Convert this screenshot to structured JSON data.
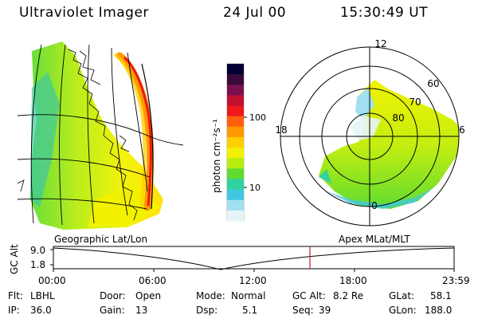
{
  "header": {
    "instrument": "Ultraviolet Imager",
    "date": "24 Jul 00",
    "time": "15:30:49 UT"
  },
  "colorbar": {
    "label": "photon cm⁻²s⁻¹",
    "ticks": [
      "100",
      "10"
    ],
    "colors": [
      "#000033",
      "#3a0a3a",
      "#7a1050",
      "#c01030",
      "#f01818",
      "#ff6010",
      "#ff9a00",
      "#ffd000",
      "#f2f200",
      "#b8ec10",
      "#60dc30",
      "#30d2a0",
      "#40c8e0",
      "#a0e0f0",
      "#e6f4f8"
    ]
  },
  "panels": {
    "geo_label": "Geographic Lat/Lon",
    "polar_label": "Apex MLat/MLT",
    "polar": {
      "mlt_labels": [
        "12",
        "18",
        "6",
        "0"
      ],
      "mlat_labels": [
        "60",
        "70",
        "80"
      ]
    }
  },
  "timeline": {
    "ylabel": "GC Alt",
    "ytick_top": "9.0",
    "ytick_bottom": "1.8",
    "xticks": [
      "00:00",
      "06:00",
      "12:00",
      "18:00",
      "23:59"
    ],
    "cursor_time": "15:30:49",
    "cursor_color": "#cc2020"
  },
  "info": {
    "filter_label": "Flt:",
    "filter_value": "LBHL",
    "ip_label": "IP:",
    "ip_value": "36.0",
    "door_label": "Door:",
    "door_value": "Open",
    "gain_label": "Gain:",
    "gain_value": "13",
    "mode_label": "Mode:",
    "mode_value": "Normal",
    "dsp_label": "Dsp:",
    "dsp_value": "5.1",
    "gcalt_label": "GC Alt:",
    "gcalt_value": "8.2 Re",
    "seq_label": "Seq:",
    "seq_value": "39",
    "glat_label": "GLat:",
    "glat_value": "58.1",
    "glon_label": "GLon:",
    "glon_value": "188.0"
  }
}
